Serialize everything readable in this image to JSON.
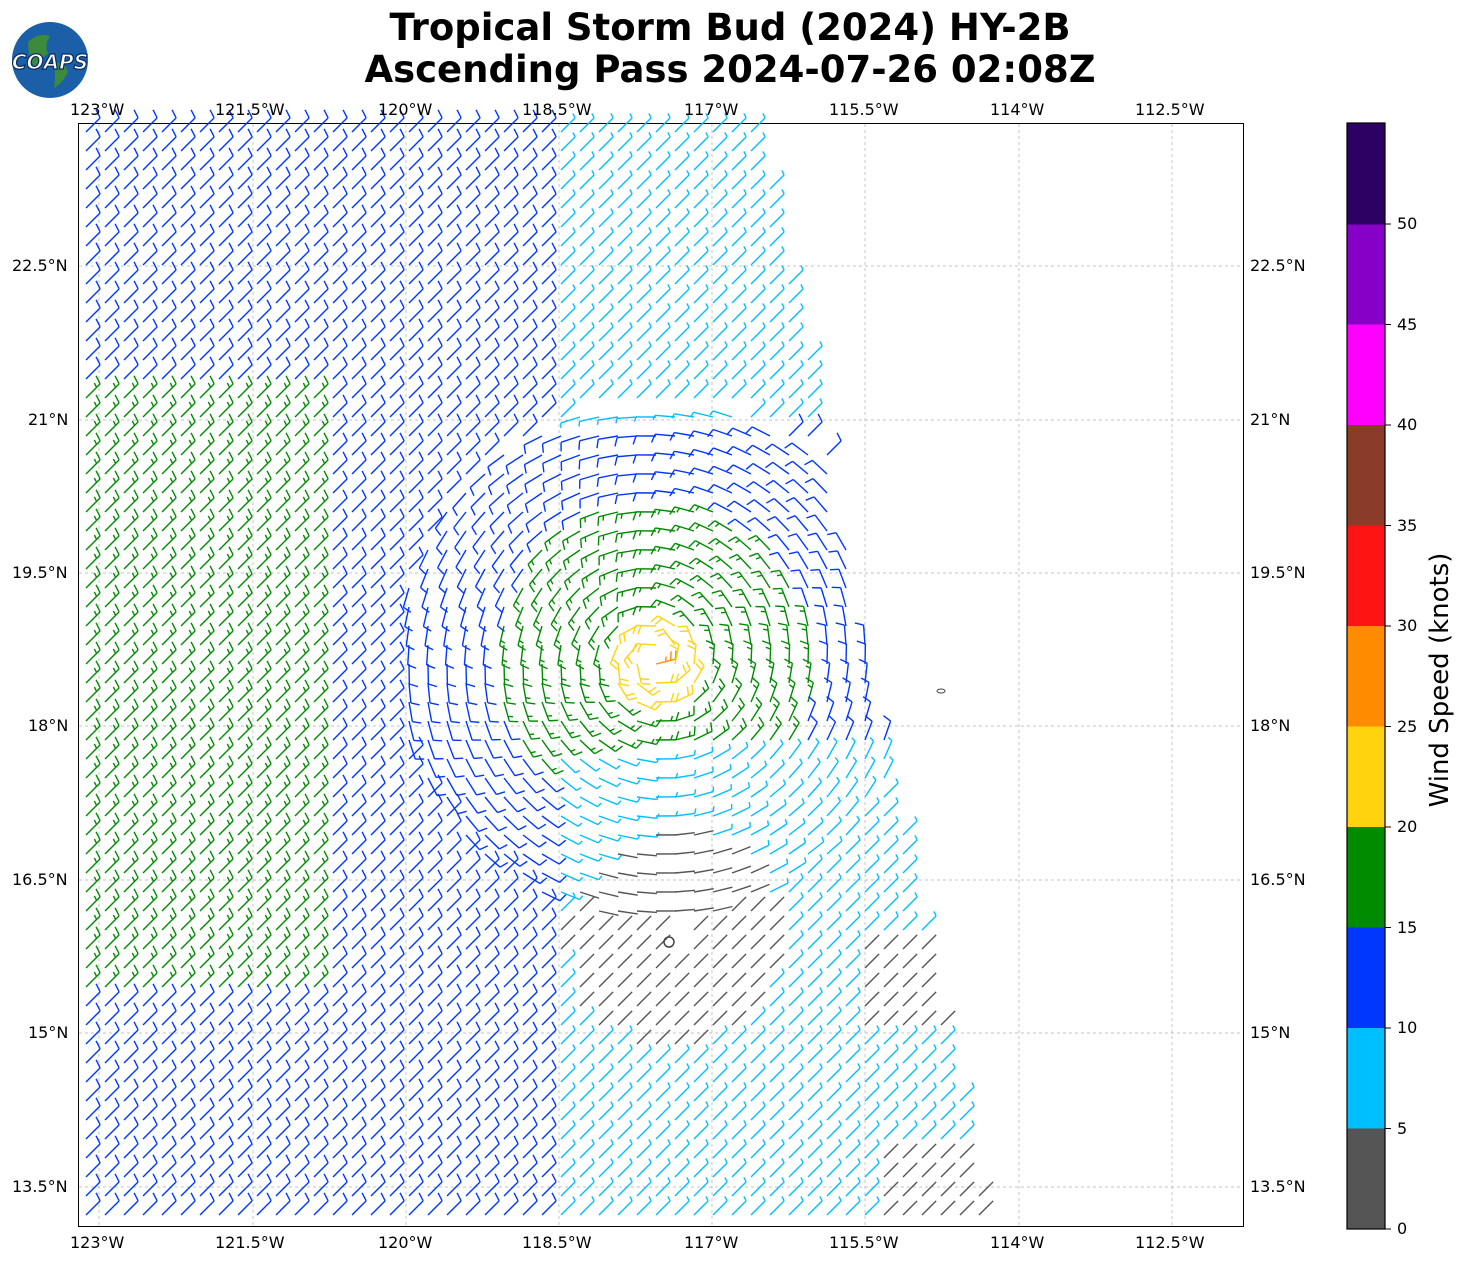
{
  "title_line1": "Tropical Storm Bud (2024) HY-2B",
  "title_line2": "Ascending Pass 2024-07-26 02:08Z",
  "logo_text": "COAPS",
  "map": {
    "lon_ticks": [
      "123°W",
      "121.5°W",
      "120°W",
      "118.5°W",
      "117°W",
      "115.5°W",
      "114°W",
      "112.5°W"
    ],
    "lat_ticks": [
      "22.5°N",
      "21°N",
      "19.5°N",
      "18°N",
      "16.5°N",
      "15°N",
      "13.5°N"
    ],
    "storm_center_lat": 16.1,
    "storm_center_lon": -117.4
  },
  "colorbar": {
    "label": "Wind Speed (knots)",
    "ticks": [
      "0",
      "5",
      "10",
      "15",
      "20",
      "25",
      "30",
      "35",
      "40",
      "45",
      "50"
    ],
    "colors": [
      "#555555",
      "#00bfff",
      "#0037ff",
      "#008c00",
      "#ffd40f",
      "#ff8c00",
      "#ff1414",
      "#8b3c28",
      "#ff00ff",
      "#8600c8",
      "#2d0064"
    ]
  }
}
